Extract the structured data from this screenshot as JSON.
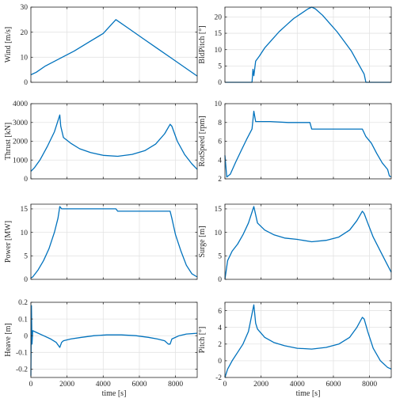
{
  "figure": {
    "line_color": "#0072bd",
    "grid": true
  },
  "chart_data": [
    {
      "type": "line",
      "ylabel": "Wind [m/s]",
      "xlabel": "",
      "xlim": [
        0,
        9200
      ],
      "ylim": [
        0,
        30
      ],
      "xticks": [
        0,
        2000,
        4000,
        6000,
        8000
      ],
      "xtick_labels": [],
      "yticks": [
        0,
        10,
        20,
        30
      ],
      "ytick_labels": [
        "0",
        "10",
        "20",
        "30"
      ],
      "series": [
        {
          "x": [
            0,
            300,
            800,
            1600,
            2400,
            3200,
            4000,
            4700,
            5400,
            6200,
            7000,
            7800,
            8600,
            9200
          ],
          "y": [
            3,
            4,
            6.5,
            9.5,
            12.5,
            16,
            19.5,
            25,
            21.5,
            17.5,
            13.5,
            9.5,
            5.5,
            2.5
          ]
        }
      ]
    },
    {
      "type": "line",
      "ylabel": "BldPitch [°]",
      "xlabel": "",
      "xlim": [
        0,
        9200
      ],
      "ylim": [
        0,
        23
      ],
      "xticks": [
        0,
        2000,
        4000,
        6000,
        8000
      ],
      "xtick_labels": [],
      "yticks": [
        0,
        5,
        10,
        15,
        20
      ],
      "ytick_labels": [
        "0",
        "5",
        "10",
        "15",
        "20"
      ],
      "series": [
        {
          "x": [
            0,
            1500,
            1550,
            1600,
            1700,
            1900,
            2200,
            2600,
            3000,
            3400,
            3800,
            4200,
            4600,
            4800,
            5000,
            5400,
            5800,
            6200,
            6600,
            7000,
            7400,
            7700,
            7800,
            7900,
            9200
          ],
          "y": [
            0,
            0,
            4,
            2,
            6.5,
            8,
            10.5,
            13,
            15.5,
            17.5,
            19.5,
            21,
            22.5,
            23,
            22.5,
            20.5,
            18,
            15.5,
            12.5,
            9.5,
            5.5,
            2.5,
            0,
            0,
            0
          ]
        }
      ]
    },
    {
      "type": "line",
      "ylabel": "Thrust [kN]",
      "xlabel": "",
      "xlim": [
        0,
        9200
      ],
      "ylim": [
        0,
        4000
      ],
      "xticks": [
        0,
        2000,
        4000,
        6000,
        8000
      ],
      "xtick_labels": [],
      "yticks": [
        0,
        1000,
        2000,
        3000,
        4000
      ],
      "ytick_labels": [
        "0",
        "1000",
        "2000",
        "3000",
        "4000"
      ],
      "series": [
        {
          "x": [
            0,
            200,
            500,
            900,
            1300,
            1600,
            1650,
            1800,
            2200,
            2700,
            3300,
            4000,
            4800,
            5600,
            6300,
            6900,
            7400,
            7700,
            7800,
            8100,
            8500,
            8900,
            9200
          ],
          "y": [
            400,
            600,
            1000,
            1700,
            2500,
            3400,
            2800,
            2200,
            1900,
            1600,
            1400,
            1250,
            1200,
            1300,
            1500,
            1850,
            2400,
            2900,
            2800,
            2000,
            1300,
            800,
            500
          ]
        }
      ]
    },
    {
      "type": "line",
      "ylabel": "RotSpeed [rpm]",
      "xlabel": "",
      "xlim": [
        0,
        9200
      ],
      "ylim": [
        2,
        10
      ],
      "xticks": [
        0,
        2000,
        4000,
        6000,
        8000
      ],
      "xtick_labels": [],
      "yticks": [
        2,
        4,
        6,
        8,
        10
      ],
      "ytick_labels": [
        "2",
        "4",
        "6",
        "8",
        "10"
      ],
      "series": [
        {
          "x": [
            0,
            100,
            300,
            600,
            900,
            1200,
            1500,
            1600,
            1700,
            2500,
            3500,
            4700,
            4800,
            5500,
            6500,
            7600,
            7800,
            8100,
            8400,
            8700,
            9000,
            9100,
            9200
          ],
          "y": [
            4.5,
            2.2,
            2.5,
            3.8,
            5,
            6.2,
            7.3,
            9.2,
            8.1,
            8.1,
            8,
            8,
            7.3,
            7.3,
            7.3,
            7.3,
            6.5,
            5.8,
            4.7,
            3.7,
            3,
            2.3,
            2.2
          ]
        }
      ]
    },
    {
      "type": "line",
      "ylabel": "Power [MW]",
      "xlabel": "",
      "xlim": [
        0,
        9200
      ],
      "ylim": [
        0,
        16
      ],
      "xticks": [
        0,
        2000,
        4000,
        6000,
        8000
      ],
      "xtick_labels": [],
      "yticks": [
        0,
        5,
        10,
        15
      ],
      "ytick_labels": [
        "0",
        "5",
        "10",
        "15"
      ],
      "series": [
        {
          "x": [
            0,
            100,
            400,
            700,
            1000,
            1300,
            1500,
            1600,
            1700,
            3000,
            4700,
            4800,
            6500,
            7700,
            7800,
            8000,
            8300,
            8600,
            8900,
            9200
          ],
          "y": [
            0.3,
            0.5,
            2,
            4,
            6.5,
            10,
            13,
            15.5,
            15,
            15,
            15,
            14.5,
            14.5,
            14.5,
            13,
            9.5,
            6,
            3,
            1.2,
            0.5
          ]
        }
      ]
    },
    {
      "type": "line",
      "ylabel": "Surge [m]",
      "xlabel": "",
      "xlim": [
        0,
        9200
      ],
      "ylim": [
        0,
        16
      ],
      "xticks": [
        0,
        2000,
        4000,
        6000,
        8000
      ],
      "xtick_labels": [],
      "yticks": [
        0,
        5,
        10,
        15
      ],
      "ytick_labels": [
        "0",
        "5",
        "10",
        "15"
      ],
      "series": [
        {
          "x": [
            0,
            150,
            400,
            700,
            1000,
            1300,
            1600,
            1800,
            2200,
            2700,
            3300,
            4000,
            4800,
            5600,
            6300,
            6900,
            7300,
            7600,
            7700,
            7900,
            8200,
            8600,
            9000,
            9200
          ],
          "y": [
            0,
            4,
            6,
            7.5,
            9.5,
            12,
            15.5,
            12,
            10.5,
            9.5,
            8.8,
            8.5,
            8,
            8.3,
            9,
            10.5,
            12.5,
            14.5,
            14,
            12,
            9,
            6,
            3,
            1.5
          ]
        }
      ]
    },
    {
      "type": "line",
      "ylabel": "Heave [m]",
      "xlabel": "time [s]",
      "xlim": [
        0,
        9200
      ],
      "ylim": [
        -0.25,
        0.2
      ],
      "xticks": [
        0,
        2000,
        4000,
        6000,
        8000
      ],
      "xtick_labels": [
        "0",
        "2000",
        "4000",
        "6000",
        "8000"
      ],
      "yticks": [
        -0.2,
        -0.1,
        0,
        0.1,
        0.2
      ],
      "ytick_labels": [
        "-0.2",
        "-0.1",
        "0",
        "0.1",
        "0.2"
      ],
      "series": [
        {
          "x": [
            0,
            30,
            60,
            100,
            300,
            700,
            1100,
            1400,
            1600,
            1700,
            1800,
            2200,
            2800,
            3500,
            4200,
            5000,
            5800,
            6500,
            7000,
            7400,
            7600,
            7700,
            7800,
            8200,
            8600,
            9200
          ],
          "y": [
            -0.24,
            0.18,
            -0.05,
            0.03,
            0.02,
            0,
            -0.02,
            -0.04,
            -0.07,
            -0.04,
            -0.03,
            -0.02,
            -0.01,
            0,
            0.005,
            0.005,
            0,
            -0.01,
            -0.02,
            -0.03,
            -0.05,
            -0.05,
            -0.02,
            0,
            0.01,
            0.015
          ]
        }
      ]
    },
    {
      "type": "line",
      "ylabel": "Pitch [°]",
      "xlabel": "time [s]",
      "xlim": [
        0,
        9200
      ],
      "ylim": [
        -2,
        7
      ],
      "xticks": [
        0,
        2000,
        4000,
        6000,
        8000
      ],
      "xtick_labels": [
        "0",
        "2000",
        "4000",
        "6000",
        "8000"
      ],
      "yticks": [
        -2,
        0,
        2,
        4,
        6
      ],
      "ytick_labels": [
        "-2",
        "0",
        "2",
        "4",
        "6"
      ],
      "series": [
        {
          "x": [
            0,
            150,
            400,
            700,
            1000,
            1300,
            1600,
            1700,
            1800,
            2200,
            2700,
            3300,
            4000,
            4800,
            5600,
            6300,
            6900,
            7300,
            7600,
            7700,
            7900,
            8200,
            8600,
            9000,
            9200
          ],
          "y": [
            -2,
            -1,
            0,
            1,
            2,
            3.5,
            6.7,
            4.5,
            3.8,
            2.8,
            2.2,
            1.8,
            1.5,
            1.4,
            1.6,
            2,
            2.8,
            4,
            5.2,
            5,
            3.5,
            1.5,
            0,
            -0.8,
            -1
          ]
        }
      ]
    }
  ]
}
